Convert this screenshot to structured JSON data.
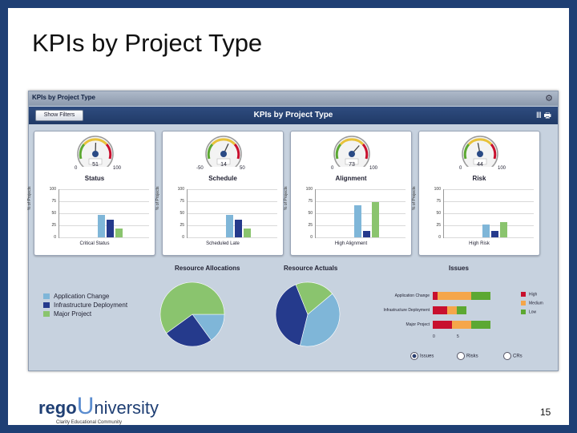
{
  "slide": {
    "title": "KPIs by Project Type",
    "page_number": "15"
  },
  "dashboard": {
    "window_title": "KPIs by Project Type",
    "header": "KPIs by Project Type",
    "show_filters_label": "Show Filters",
    "y_axis_label": "% of Projects",
    "panels": [
      {
        "title": "Status",
        "gauge": {
          "min": "0",
          "max": "100",
          "value": "51"
        },
        "x_label": "Critical Status",
        "ticks": [
          "100",
          "75",
          "50",
          "25",
          "0"
        ],
        "bars": [
          46,
          36,
          18
        ]
      },
      {
        "title": "Schedule",
        "gauge": {
          "min": "-50",
          "max": "50",
          "value": "14"
        },
        "x_label": "Scheduled Late",
        "ticks": [
          "100",
          "75",
          "50",
          "25",
          "0"
        ],
        "bars": [
          46,
          36,
          18
        ]
      },
      {
        "title": "Alignment",
        "gauge": {
          "min": "0",
          "max": "100",
          "value": "73"
        },
        "x_label": "High Alignment",
        "ticks": [
          "100",
          "75",
          "50",
          "25",
          "0"
        ],
        "bars": [
          66,
          14,
          74
        ]
      },
      {
        "title": "Risk",
        "gauge": {
          "min": "0",
          "max": "100",
          "value": "44"
        },
        "x_label": "High Risk",
        "ticks": [
          "100",
          "75",
          "50",
          "25",
          "0"
        ],
        "bars": [
          26,
          14,
          31
        ]
      }
    ],
    "legend": [
      {
        "label": "Application Change",
        "color": "#7fb6d8"
      },
      {
        "label": "Infrastructure Deployment",
        "color": "#253a8c"
      },
      {
        "label": "Major Project",
        "color": "#8ac46e"
      }
    ],
    "resource_allocations": {
      "title": "Resource Allocations",
      "slices": [
        15,
        25,
        60
      ]
    },
    "resource_actuals": {
      "title": "Resource Actuals",
      "slices": [
        40,
        40,
        20
      ]
    },
    "issues": {
      "title": "Issues",
      "categories": [
        "Application Change",
        "Infrastructure Deployment",
        "Major Project"
      ],
      "x_ticks": [
        "0",
        "5"
      ],
      "series": [
        {
          "name": "High",
          "color": "#c8102e",
          "values": [
            1,
            3,
            4
          ]
        },
        {
          "name": "Medium",
          "color": "#f5a64a",
          "values": [
            7,
            2,
            4
          ]
        },
        {
          "name": "Low",
          "color": "#5ca832",
          "values": [
            4,
            2,
            4
          ]
        }
      ]
    },
    "radios": [
      {
        "label": "Issues",
        "selected": true
      },
      {
        "label": "Risks",
        "selected": false
      },
      {
        "label": "CRs",
        "selected": false
      }
    ]
  },
  "logo": {
    "rego": "rego",
    "u": "U",
    "niversity": "niversity",
    "tagline": "Clarity Educational Community"
  },
  "chart_data": [
    {
      "type": "bar",
      "title": "Status",
      "categories": [
        "Critical Status"
      ],
      "series": [
        {
          "name": "Application Change",
          "values": [
            46
          ]
        },
        {
          "name": "Infrastructure Deployment",
          "values": [
            36
          ]
        },
        {
          "name": "Major Project",
          "values": [
            18
          ]
        }
      ],
      "ylabel": "% of Projects",
      "ylim": [
        0,
        100
      ]
    },
    {
      "type": "bar",
      "title": "Schedule",
      "categories": [
        "Scheduled Late"
      ],
      "series": [
        {
          "name": "Application Change",
          "values": [
            46
          ]
        },
        {
          "name": "Infrastructure Deployment",
          "values": [
            36
          ]
        },
        {
          "name": "Major Project",
          "values": [
            18
          ]
        }
      ],
      "ylabel": "% of Projects",
      "ylim": [
        0,
        100
      ]
    },
    {
      "type": "bar",
      "title": "Alignment",
      "categories": [
        "High Alignment"
      ],
      "series": [
        {
          "name": "Application Change",
          "values": [
            66
          ]
        },
        {
          "name": "Infrastructure Deployment",
          "values": [
            14
          ]
        },
        {
          "name": "Major Project",
          "values": [
            74
          ]
        }
      ],
      "ylabel": "% of Projects",
      "ylim": [
        0,
        100
      ]
    },
    {
      "type": "bar",
      "title": "Risk",
      "categories": [
        "High Risk"
      ],
      "series": [
        {
          "name": "Application Change",
          "values": [
            26
          ]
        },
        {
          "name": "Infrastructure Deployment",
          "values": [
            14
          ]
        },
        {
          "name": "Major Project",
          "values": [
            31
          ]
        }
      ],
      "ylabel": "% of Projects",
      "ylim": [
        0,
        100
      ]
    },
    {
      "type": "pie",
      "title": "Resource Allocations",
      "categories": [
        "Application Change",
        "Infrastructure Deployment",
        "Major Project"
      ],
      "values": [
        15,
        25,
        60
      ]
    },
    {
      "type": "pie",
      "title": "Resource Actuals",
      "categories": [
        "Application Change",
        "Infrastructure Deployment",
        "Major Project"
      ],
      "values": [
        40,
        40,
        20
      ]
    },
    {
      "type": "bar",
      "title": "Issues",
      "categories": [
        "Application Change",
        "Infrastructure Deployment",
        "Major Project"
      ],
      "series": [
        {
          "name": "High",
          "values": [
            1,
            3,
            4
          ]
        },
        {
          "name": "Medium",
          "values": [
            7,
            2,
            4
          ]
        },
        {
          "name": "Low",
          "values": [
            4,
            2,
            4
          ]
        }
      ]
    }
  ]
}
